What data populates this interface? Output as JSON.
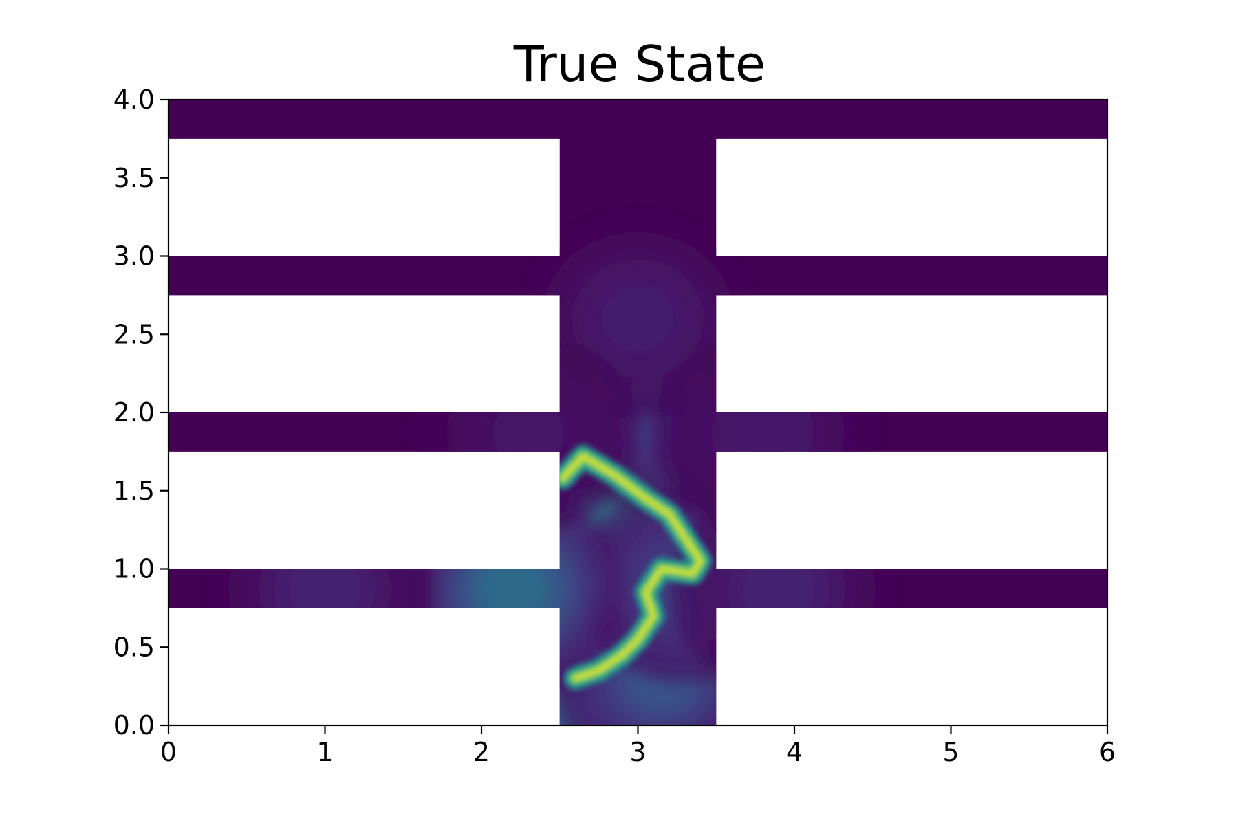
{
  "chart_data": {
    "type": "heatmap",
    "title": "True State",
    "xlabel": "",
    "ylabel": "",
    "xlim": [
      0,
      6
    ],
    "ylim": [
      0,
      4
    ],
    "xticks": [
      "0",
      "1",
      "2",
      "3",
      "4",
      "5",
      "6"
    ],
    "yticks": [
      "0.0",
      "0.5",
      "1.0",
      "1.5",
      "2.0",
      "2.5",
      "3.0",
      "3.5",
      "4.0"
    ],
    "colormap": "viridis",
    "value_range": [
      0,
      1
    ],
    "grid": false,
    "legend": "none",
    "domain": {
      "vertical_channel": {
        "x": [
          2.5,
          3.5
        ],
        "y": [
          0,
          4
        ]
      },
      "horizontal_channels": [
        {
          "x": [
            0,
            6
          ],
          "y": [
            0.75,
            1.0
          ]
        },
        {
          "x": [
            0,
            6
          ],
          "y": [
            1.75,
            2.0
          ]
        },
        {
          "x": [
            0,
            6
          ],
          "y": [
            2.75,
            3.0
          ]
        },
        {
          "x": [
            0,
            6
          ],
          "y": [
            3.75,
            4.0
          ]
        }
      ]
    },
    "field": {
      "background": 0.0,
      "plume_sources": [
        {
          "x": 2.55,
          "y": 0.15,
          "value": 0.35
        },
        {
          "x": 2.7,
          "y": 0.8,
          "value": 0.55
        },
        {
          "x": 2.8,
          "y": 1.2,
          "value": 0.6
        },
        {
          "x": 2.95,
          "y": 1.55,
          "value": 0.5
        },
        {
          "x": 3.15,
          "y": 0.3,
          "value": 0.3
        },
        {
          "x": 3.3,
          "y": 0.9,
          "value": 0.25
        },
        {
          "x": 3.1,
          "y": 2.0,
          "value": 0.2
        },
        {
          "x": 3.0,
          "y": 2.6,
          "value": 0.1
        },
        {
          "x": 2.2,
          "y": 0.87,
          "value": 0.4
        },
        {
          "x": 1.0,
          "y": 0.87,
          "value": 0.12
        },
        {
          "x": 3.9,
          "y": 0.87,
          "value": 0.12
        },
        {
          "x": 2.3,
          "y": 1.87,
          "value": 0.07
        },
        {
          "x": 3.8,
          "y": 1.87,
          "value": 0.08
        }
      ],
      "front": [
        [
          2.52,
          1.58
        ],
        [
          2.65,
          1.72
        ],
        [
          2.85,
          1.6
        ],
        [
          3.05,
          1.45
        ],
        [
          3.2,
          1.35
        ],
        [
          3.3,
          1.2
        ],
        [
          3.4,
          1.05
        ],
        [
          3.35,
          0.97
        ],
        [
          3.15,
          1.0
        ],
        [
          3.05,
          0.85
        ],
        [
          3.1,
          0.7
        ],
        [
          3.0,
          0.55
        ],
        [
          2.9,
          0.45
        ],
        [
          2.75,
          0.35
        ],
        [
          2.6,
          0.3
        ]
      ],
      "front_value": 0.95
    }
  }
}
